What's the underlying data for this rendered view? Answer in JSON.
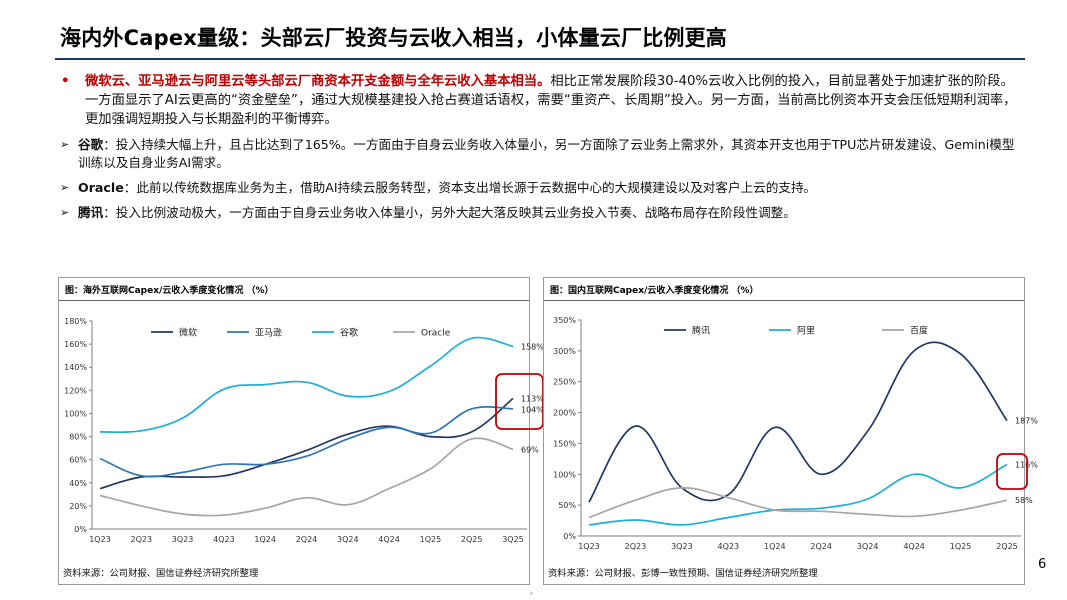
{
  "title": "海内外Capex量级：头部云厂投资与云收入相当，小体量云厂比例更高",
  "bullets": {
    "main_marker": "•",
    "main_bold": "微软云、亚马逊云与阿里云等头部云厂商资本开支金额与全年云收入基本相当。",
    "main_rest": "相比正常发展阶段30-40%云收入比例的投入，目前显著处于加速扩张的阶段。一方面显示了AI云更高的“资金壁垒”，通过大规模基建投入抢占赛道话语权，需要“重资产、长周期”投入。另一方面，当前高比例资本开支会压低短期利润率，更加强调短期投入与长期盈利的平衡博弈。",
    "sub_marker": "➢",
    "subs": [
      {
        "name": "谷歌",
        "sep": "：",
        "text": "投入持续大幅上升，且占比达到了165%。一方面由于自身云业务收入体量小，另一方面除了云业务上需求外，其资本开支也用于TPU芯片研发建设、Gemini模型训练以及自身业务AI需求。"
      },
      {
        "name": "Oracle",
        "sep": "：",
        "text": "此前以传统数据库业务为主，借助AI持续云服务转型，资本支出增长源于云数据中心的大规模建设以及对客户上云的支持。"
      },
      {
        "name": "腾讯",
        "sep": "：",
        "text": "投入比例波动极大，一方面由于自身云业务收入体量小，另外大起大落反映其云业务投入节奏、战略布局存在阶段性调整。"
      }
    ]
  },
  "left_panel": {
    "title": "图：海外互联网Capex/云收入季度变化情况 （%）",
    "source": "资料来源：公司财报、国信证券经济研究所整理"
  },
  "right_panel": {
    "title": "图：国内互联网Capex/云收入季度变化情况 （%）",
    "source": "资料来源：公司财报、彭博一致性预期、国信证券经济研究所整理"
  },
  "page_number": "6",
  "chart_data": [
    {
      "type": "line",
      "title": "海外互联网Capex/云收入季度变化情况 （%）",
      "categories": [
        "1Q23",
        "2Q23",
        "3Q23",
        "4Q23",
        "1Q24",
        "2Q24",
        "3Q24",
        "4Q24",
        "1Q25",
        "2Q25",
        "3Q25"
      ],
      "ylim": [
        0,
        180
      ],
      "yticks": [
        0,
        20,
        40,
        60,
        80,
        100,
        120,
        140,
        160,
        180
      ],
      "ytick_labels": [
        "0%",
        "20%",
        "40%",
        "60%",
        "80%",
        "100%",
        "120%",
        "140%",
        "160%",
        "180%"
      ],
      "legend_position": "top",
      "series": [
        {
          "name": "微软",
          "color": "#1f3864",
          "values": [
            35,
            45,
            45,
            46,
            56,
            68,
            82,
            89,
            80,
            84,
            113
          ]
        },
        {
          "name": "亚马逊",
          "color": "#2e75b6",
          "values": [
            61,
            46,
            49,
            56,
            56,
            63,
            78,
            88,
            83,
            104,
            104
          ]
        },
        {
          "name": "谷歌",
          "color": "#1ab0d8",
          "values": [
            84,
            85,
            96,
            121,
            125,
            127,
            115,
            119,
            141,
            165,
            158
          ]
        },
        {
          "name": "Oracle",
          "color": "#a6a6a6",
          "values": [
            29,
            20,
            13,
            12,
            18,
            27,
            21,
            35,
            52,
            78,
            69
          ]
        }
      ],
      "end_labels": [
        {
          "series": "谷歌",
          "text": "158%"
        },
        {
          "series": "微软",
          "text": "113%"
        },
        {
          "series": "亚马逊",
          "text": "104%"
        },
        {
          "series": "Oracle",
          "text": "69%"
        }
      ],
      "highlight": {
        "series": [
          "微软",
          "亚马逊"
        ],
        "color": "#c00000"
      }
    },
    {
      "type": "line",
      "title": "国内互联网Capex/云收入季度变化情况 （%）",
      "categories": [
        "1Q23",
        "2Q23",
        "3Q23",
        "4Q23",
        "1Q24",
        "2Q24",
        "3Q24",
        "4Q24",
        "1Q25",
        "2Q25"
      ],
      "ylim": [
        0,
        350
      ],
      "yticks": [
        0,
        50,
        100,
        150,
        200,
        250,
        300,
        350
      ],
      "ytick_labels": [
        "0%",
        "50%",
        "100%",
        "150%",
        "200%",
        "250%",
        "300%",
        "350%"
      ],
      "legend_position": "top",
      "series": [
        {
          "name": "腾讯",
          "color": "#1f3864",
          "values": [
            55,
            178,
            78,
            67,
            176,
            100,
            170,
            300,
            295,
            187
          ]
        },
        {
          "name": "阿里",
          "color": "#1ab0d8",
          "values": [
            18,
            26,
            18,
            30,
            42,
            45,
            60,
            100,
            78,
            116
          ]
        },
        {
          "name": "百度",
          "color": "#a6a6a6",
          "values": [
            30,
            58,
            78,
            62,
            42,
            40,
            35,
            32,
            42,
            58
          ]
        }
      ],
      "end_labels": [
        {
          "series": "腾讯",
          "text": "187%"
        },
        {
          "series": "阿里",
          "text": "116%"
        },
        {
          "series": "百度",
          "text": "58%"
        }
      ],
      "highlight": {
        "series": [
          "阿里"
        ],
        "color": "#c00000"
      }
    }
  ]
}
